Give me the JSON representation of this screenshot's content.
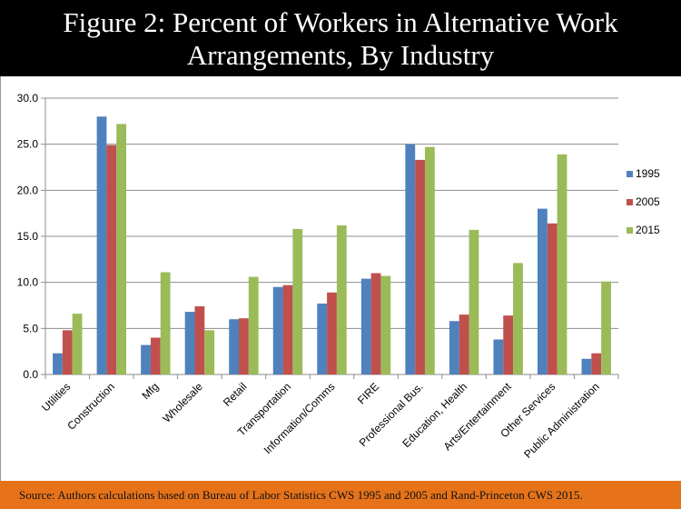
{
  "title": {
    "line1": "Figure 2: Percent of Workers in Alternative Work",
    "line2": "Arrangements, By Industry"
  },
  "footer": {
    "source": "Source: Authors calculations based on Bureau of Labor Statistics CWS 1995 and 2005 and Rand-Princeton CWS 2015."
  },
  "chart_data": {
    "type": "bar",
    "title": "Figure 2: Percent of Workers in Alternative Work Arrangements, By Industry",
    "xlabel": "",
    "ylabel": "",
    "ylim": [
      0,
      30
    ],
    "yticks": [
      "0.0",
      "5.0",
      "10.0",
      "15.0",
      "20.0",
      "25.0",
      "30.0"
    ],
    "grid": true,
    "legend_position": "right",
    "categories": [
      "Utilities",
      "Construction",
      "Mfg",
      "Wholesale",
      "Retail",
      "Transportation",
      "Information/Comms",
      "FIRE",
      "Professional Bus.",
      "Education, Health",
      "Arts/Entertainment",
      "Other Services",
      "Public Administration"
    ],
    "series": [
      {
        "name": "1995",
        "color": "#4F81BD",
        "values": [
          2.3,
          28.0,
          3.2,
          6.8,
          6.0,
          9.5,
          7.7,
          10.4,
          25.0,
          5.8,
          3.8,
          18.0,
          1.7
        ]
      },
      {
        "name": "2005",
        "color": "#C0504D",
        "values": [
          4.8,
          24.9,
          4.0,
          7.4,
          6.1,
          9.7,
          8.9,
          11.0,
          23.3,
          6.5,
          6.4,
          16.4,
          2.3
        ]
      },
      {
        "name": "2015",
        "color": "#9BBB59",
        "values": [
          6.6,
          27.2,
          11.1,
          4.8,
          10.6,
          15.8,
          16.2,
          10.7,
          24.7,
          15.7,
          12.1,
          23.9,
          10.1
        ]
      }
    ]
  }
}
